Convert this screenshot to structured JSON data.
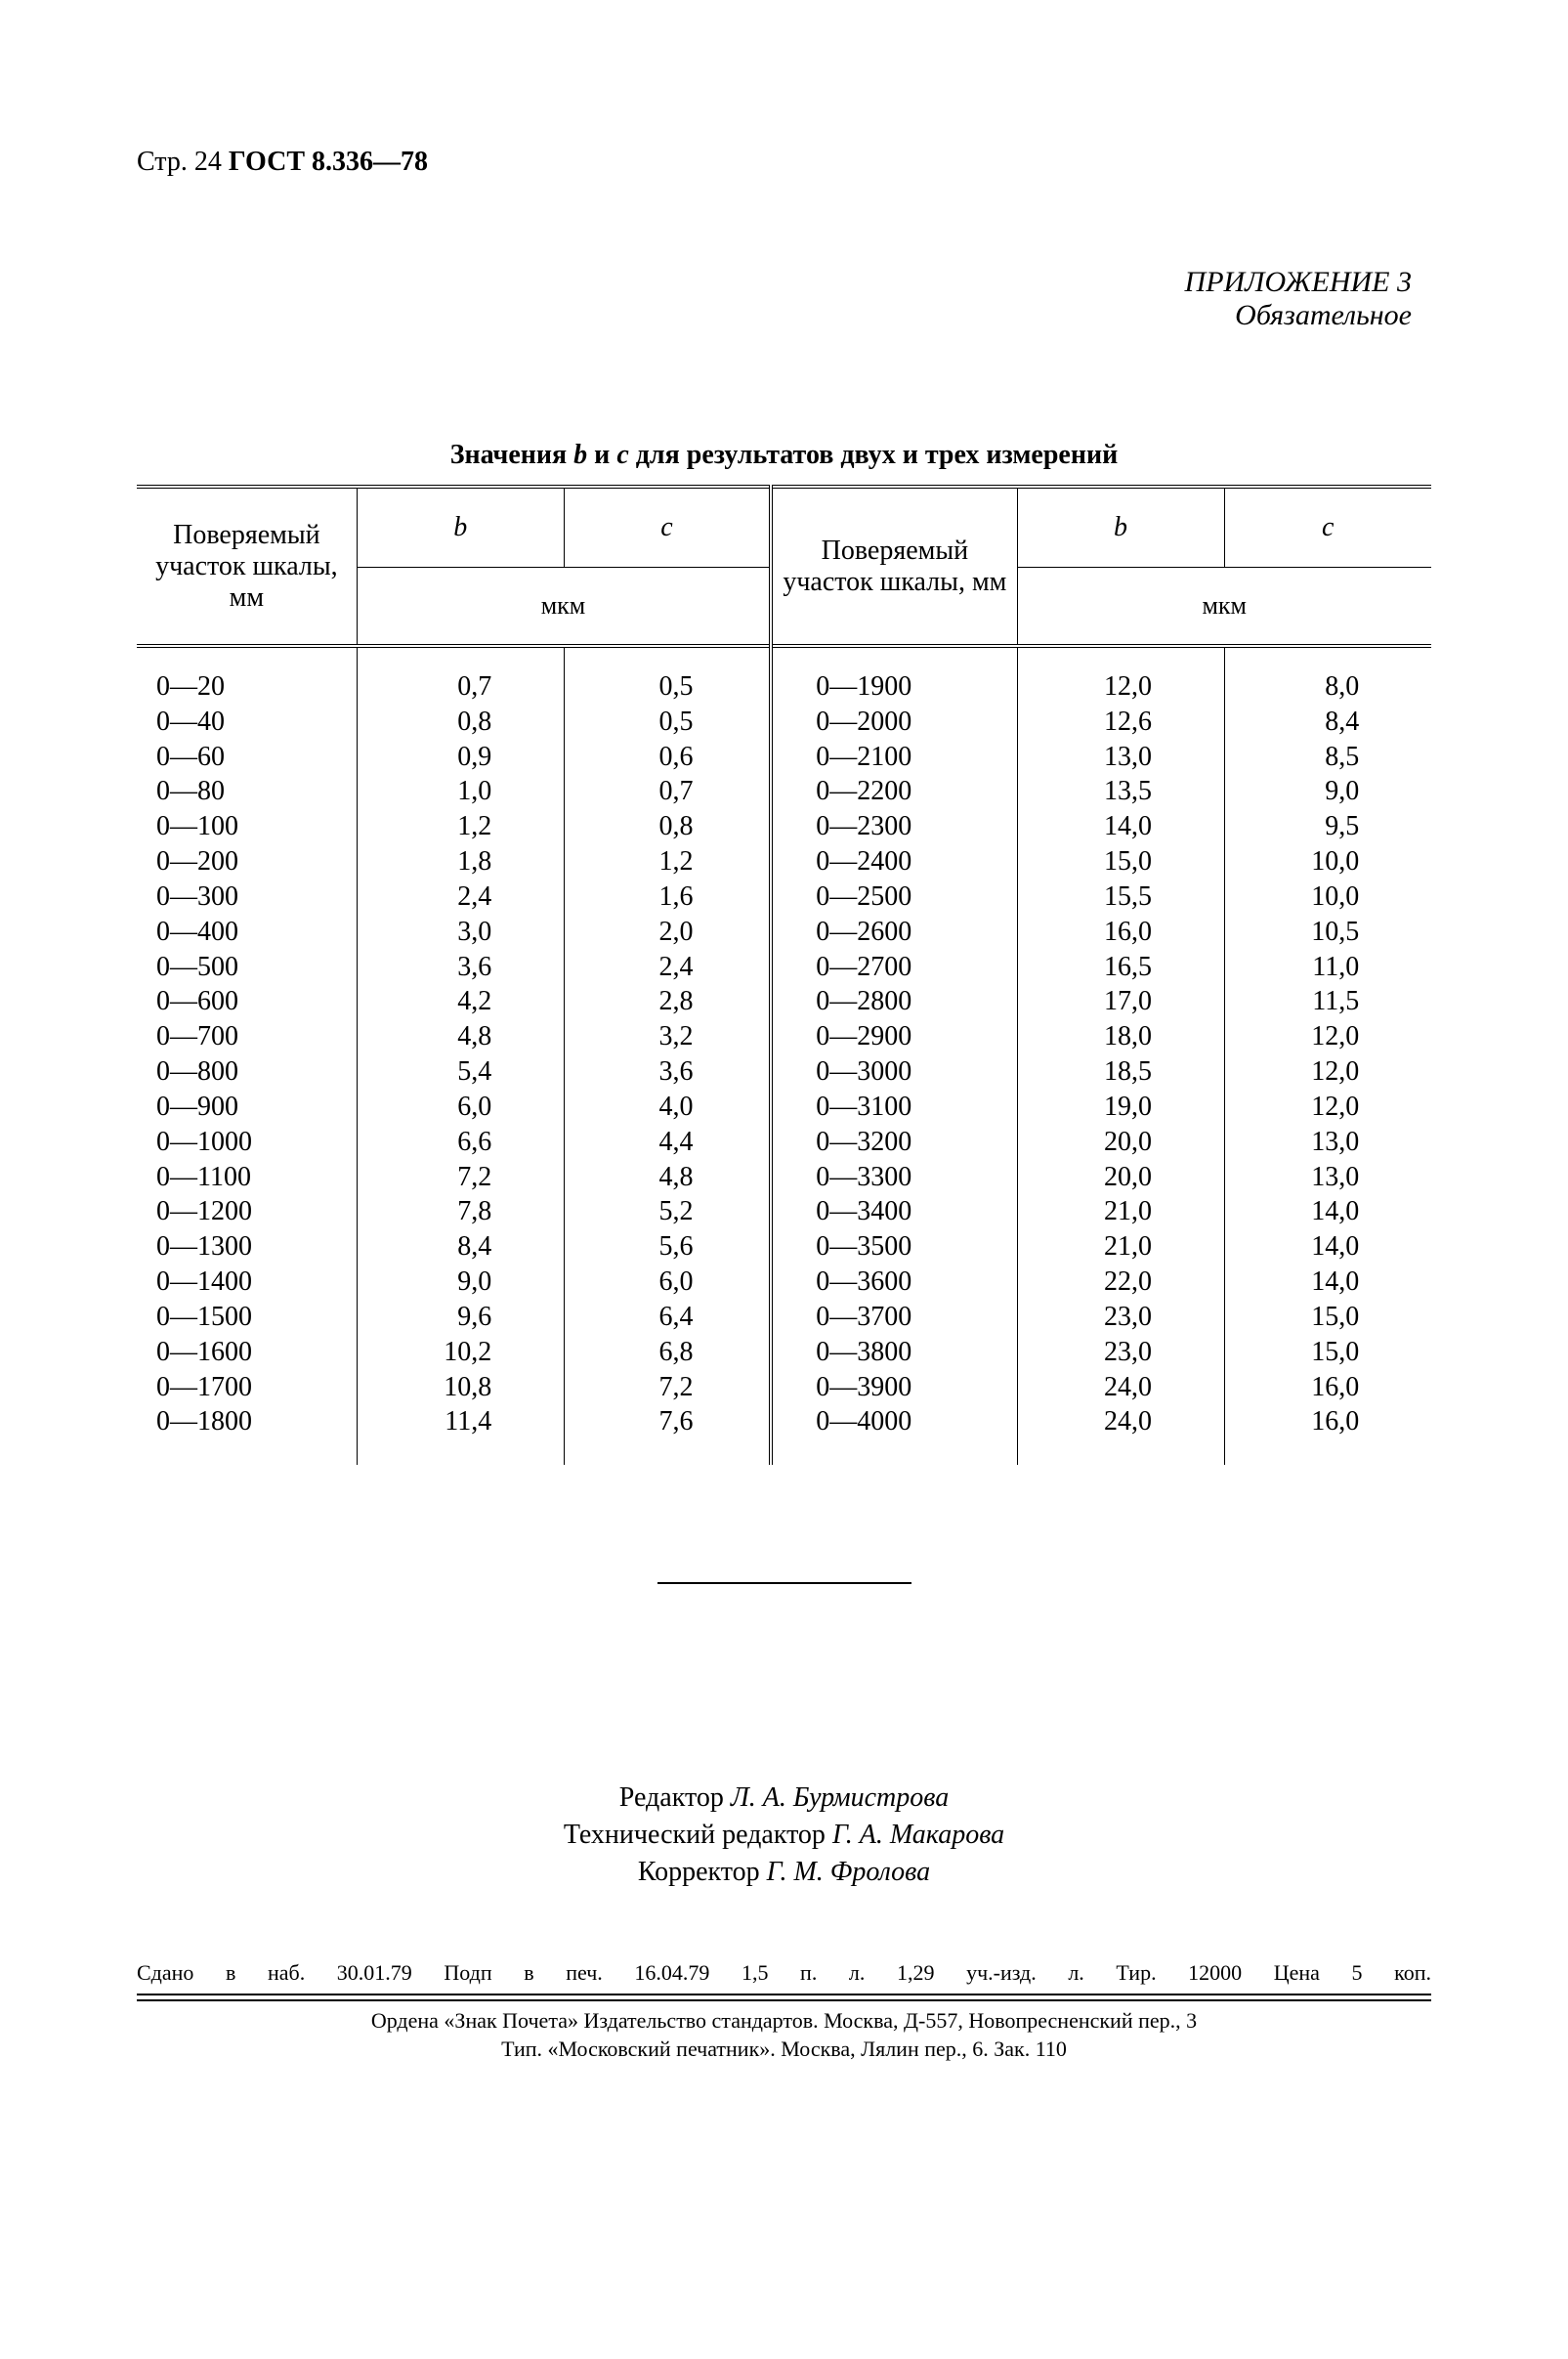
{
  "page": {
    "header_page": "Стр. 24",
    "header_gost": "ГОСТ 8.336—78",
    "appendix_title": "ПРИЛОЖЕНИЕ 3",
    "appendix_subtitle": "Обязательное"
  },
  "table": {
    "caption_pre": "Значения ",
    "caption_b": "b",
    "caption_mid": " и ",
    "caption_c": "с",
    "caption_post": " для результатов двух и трех измерений",
    "header_range": "Поверяемый участок шкалы, мм",
    "header_b": "b",
    "header_c": "c",
    "header_unit": "мкм",
    "left": [
      {
        "r": "0—20",
        "b": "0,7",
        "c": "0,5"
      },
      {
        "r": "0—40",
        "b": "0,8",
        "c": "0,5"
      },
      {
        "r": "0—60",
        "b": "0,9",
        "c": "0,6"
      },
      {
        "r": "0—80",
        "b": "1,0",
        "c": "0,7"
      },
      {
        "r": "0—100",
        "b": "1,2",
        "c": "0,8"
      },
      {
        "r": "0—200",
        "b": "1,8",
        "c": "1,2"
      },
      {
        "r": "0—300",
        "b": "2,4",
        "c": "1,6"
      },
      {
        "r": "0—400",
        "b": "3,0",
        "c": "2,0"
      },
      {
        "r": "0—500",
        "b": "3,6",
        "c": "2,4"
      },
      {
        "r": "0—600",
        "b": "4,2",
        "c": "2,8"
      },
      {
        "r": "0—700",
        "b": "4,8",
        "c": "3,2"
      },
      {
        "r": "0—800",
        "b": "5,4",
        "c": "3,6"
      },
      {
        "r": "0—900",
        "b": "6,0",
        "c": "4,0"
      },
      {
        "r": "0—1000",
        "b": "6,6",
        "c": "4,4"
      },
      {
        "r": "0—1100",
        "b": "7,2",
        "c": "4,8"
      },
      {
        "r": "0—1200",
        "b": "7,8",
        "c": "5,2"
      },
      {
        "r": "0—1300",
        "b": "8,4",
        "c": "5,6"
      },
      {
        "r": "0—1400",
        "b": "9,0",
        "c": "6,0"
      },
      {
        "r": "0—1500",
        "b": "9,6",
        "c": "6,4"
      },
      {
        "r": "0—1600",
        "b": "10,2",
        "c": "6,8"
      },
      {
        "r": "0—1700",
        "b": "10,8",
        "c": "7,2"
      },
      {
        "r": "0—1800",
        "b": "11,4",
        "c": "7,6"
      }
    ],
    "right": [
      {
        "r": "0—1900",
        "b": "12,0",
        "c": "8,0"
      },
      {
        "r": "0—2000",
        "b": "12,6",
        "c": "8,4"
      },
      {
        "r": "0—2100",
        "b": "13,0",
        "c": "8,5"
      },
      {
        "r": "0—2200",
        "b": "13,5",
        "c": "9,0"
      },
      {
        "r": "0—2300",
        "b": "14,0",
        "c": "9,5"
      },
      {
        "r": "0—2400",
        "b": "15,0",
        "c": "10,0"
      },
      {
        "r": "0—2500",
        "b": "15,5",
        "c": "10,0"
      },
      {
        "r": "0—2600",
        "b": "16,0",
        "c": "10,5"
      },
      {
        "r": "0—2700",
        "b": "16,5",
        "c": "11,0"
      },
      {
        "r": "0—2800",
        "b": "17,0",
        "c": "11,5"
      },
      {
        "r": "0—2900",
        "b": "18,0",
        "c": "12,0"
      },
      {
        "r": "0—3000",
        "b": "18,5",
        "c": "12,0"
      },
      {
        "r": "0—3100",
        "b": "19,0",
        "c": "12,0"
      },
      {
        "r": "0—3200",
        "b": "20,0",
        "c": "13,0"
      },
      {
        "r": "0—3300",
        "b": "20,0",
        "c": "13,0"
      },
      {
        "r": "0—3400",
        "b": "21,0",
        "c": "14,0"
      },
      {
        "r": "0—3500",
        "b": "21,0",
        "c": "14,0"
      },
      {
        "r": "0—3600",
        "b": "22,0",
        "c": "14,0"
      },
      {
        "r": "0—3700",
        "b": "23,0",
        "c": "15,0"
      },
      {
        "r": "0—3800",
        "b": "23,0",
        "c": "15,0"
      },
      {
        "r": "0—3900",
        "b": "24,0",
        "c": "16,0"
      },
      {
        "r": "0—4000",
        "b": "24,0",
        "c": "16,0"
      }
    ]
  },
  "credits": {
    "line1_pre": "Редактор ",
    "line1_name": "Л. А. Бурмистрова",
    "line2_pre": "Технический редактор ",
    "line2_name": "Г. А. Макарова",
    "line3_pre": "Корректор ",
    "line3_name": "Г. М. Фролова"
  },
  "imprint": {
    "row1": "Сдано в наб. 30.01.79 Подп в печ. 16.04.79 1,5 п. л. 1,29 уч.-изд. л. Тир. 12000 Цена 5 коп.",
    "row2a": "Ордена «Знак Почета» Издательство стандартов. Москва, Д-557, Новопресненский пер., 3",
    "row2b": "Тип. «Московский печатник». Москва, Лялин пер., 6. Зак. 110"
  },
  "style": {
    "text_color": "#000000",
    "background": "#ffffff",
    "font_family": "Times New Roman",
    "body_fontsize_pt": 21,
    "caption_fontsize_pt": 21,
    "imprint_fontsize_pt": 16
  }
}
